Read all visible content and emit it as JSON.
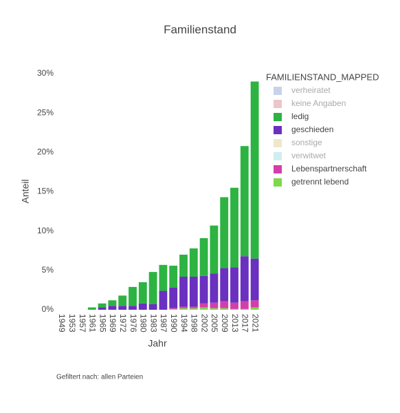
{
  "chart_data": {
    "type": "bar",
    "stacked": true,
    "title": "Familienstand",
    "x_label": "Jahr",
    "y_label": "Anteil",
    "legend_title": "FAMILIENSTAND_MAPPED",
    "note": "Gefiltert nach: allen Parteien",
    "categories": [
      "1949",
      "1953",
      "1957",
      "1961",
      "1965",
      "1969",
      "1972",
      "1976",
      "1980",
      "1983",
      "1987",
      "1990",
      "1994",
      "1998",
      "2002",
      "2005",
      "2009",
      "2013",
      "2017",
      "2021"
    ],
    "series": [
      {
        "name": "verheiratet",
        "color": "#8fa8d6",
        "visible": "legendonly",
        "values": [
          null,
          null,
          null,
          null,
          null,
          null,
          null,
          null,
          null,
          null,
          null,
          null,
          null,
          null,
          null,
          null,
          null,
          null,
          null,
          null
        ]
      },
      {
        "name": "keine Angaben",
        "color": "#d98c95",
        "visible": "legendonly",
        "values": [
          null,
          null,
          null,
          null,
          null,
          null,
          null,
          null,
          null,
          null,
          null,
          null,
          null,
          null,
          null,
          null,
          null,
          null,
          null,
          null
        ]
      },
      {
        "name": "ledig",
        "color": "#2db342",
        "values": [
          null,
          null,
          null,
          0.3,
          0.5,
          0.7,
          1.3,
          2.4,
          2.7,
          4.1,
          3.3,
          2.8,
          2.8,
          3.6,
          4.8,
          6.1,
          9.0,
          10.1,
          14.0,
          22.5
        ]
      },
      {
        "name": "geschieden",
        "color": "#6a30c0",
        "values": [
          null,
          null,
          null,
          null,
          0.3,
          0.5,
          0.5,
          0.5,
          0.8,
          0.7,
          2.4,
          2.6,
          3.8,
          3.8,
          3.5,
          3.7,
          4.2,
          4.5,
          5.7,
          5.3
        ]
      },
      {
        "name": "sonstige",
        "color": "#e0cf95",
        "visible": "legendonly",
        "values": [
          null,
          null,
          null,
          null,
          null,
          null,
          null,
          null,
          null,
          null,
          null,
          null,
          null,
          null,
          null,
          null,
          null,
          null,
          null,
          null
        ]
      },
      {
        "name": "verwitwet",
        "color": "#9ee0e0",
        "visible": "legendonly",
        "values": [
          null,
          null,
          null,
          null,
          null,
          null,
          null,
          null,
          null,
          null,
          null,
          null,
          null,
          null,
          null,
          null,
          null,
          null,
          null,
          null
        ]
      },
      {
        "name": "Lebenspartnerschaft",
        "color": "#d33faa",
        "values": [
          null,
          null,
          null,
          null,
          null,
          null,
          null,
          null,
          null,
          null,
          null,
          0.1,
          0.2,
          0.2,
          0.5,
          0.7,
          0.9,
          0.8,
          1.0,
          0.9
        ]
      },
      {
        "name": "getrennt lebend",
        "color": "#7ed84a",
        "values": [
          null,
          null,
          null,
          null,
          null,
          null,
          null,
          null,
          null,
          null,
          null,
          0.1,
          0.2,
          0.2,
          0.3,
          0.2,
          0.2,
          0.1,
          0.1,
          0.3
        ]
      }
    ],
    "ylim": [
      0,
      30
    ],
    "yticks": [
      {
        "value": 0,
        "label": "0%"
      },
      {
        "value": 5,
        "label": "5%"
      },
      {
        "value": 10,
        "label": "10%"
      },
      {
        "value": 15,
        "label": "15%"
      },
      {
        "value": 20,
        "label": "20%"
      },
      {
        "value": 25,
        "label": "25%"
      },
      {
        "value": 30,
        "label": "30%"
      }
    ],
    "grid": false
  }
}
